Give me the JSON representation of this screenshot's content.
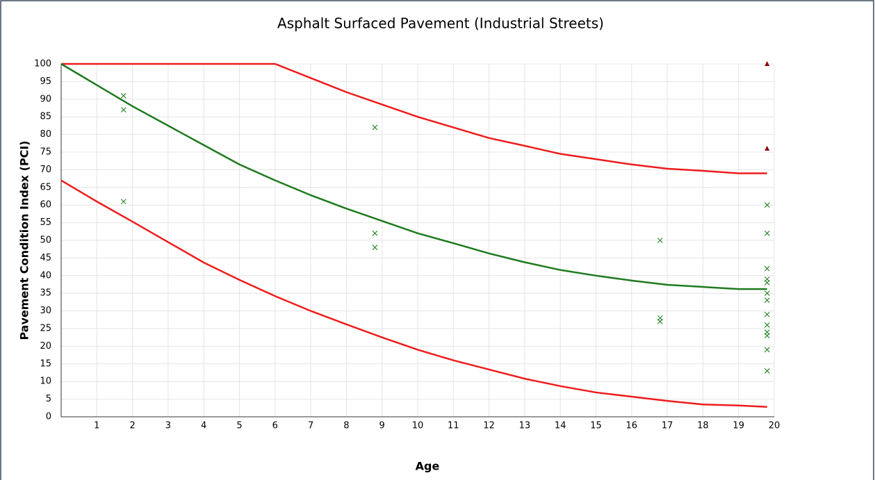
{
  "chart_data": {
    "type": "line",
    "title": "Asphalt Surfaced Pavement (Industrial Streets)",
    "xlabel": "Age",
    "ylabel": "Pavement Condition Index (PCI)",
    "xlim": [
      0,
      20
    ],
    "ylim": [
      0,
      100
    ],
    "xticks": [
      1,
      2,
      3,
      4,
      5,
      6,
      7,
      8,
      9,
      10,
      11,
      12,
      13,
      14,
      15,
      16,
      17,
      18,
      19,
      20
    ],
    "yticks": [
      0,
      5,
      10,
      15,
      20,
      25,
      30,
      35,
      40,
      45,
      50,
      55,
      60,
      65,
      70,
      75,
      80,
      85,
      90,
      95,
      100
    ],
    "grid": true,
    "series": [
      {
        "type": "line",
        "color": "#ee1c1c",
        "x": [
          0,
          6,
          7,
          8,
          9,
          10,
          11,
          12,
          13,
          14,
          15,
          16,
          17,
          18,
          19,
          19.8
        ],
        "values": [
          100,
          100,
          96,
          92,
          88.5,
          85,
          82,
          79,
          76.8,
          74.5,
          73,
          71.5,
          70.3,
          69.7,
          69,
          69
        ]
      },
      {
        "type": "line",
        "color": "#1e7a1e",
        "x": [
          0,
          1,
          2,
          3,
          4,
          5,
          6,
          7,
          8,
          9,
          10,
          11,
          12,
          13,
          14,
          15,
          16,
          17,
          18,
          19,
          19.8
        ],
        "values": [
          100,
          94,
          88,
          82.5,
          77,
          71.5,
          67,
          62.8,
          59,
          55.5,
          52,
          49.2,
          46.3,
          43.8,
          41.6,
          40,
          38.6,
          37.4,
          36.8,
          36.2,
          36.2
        ]
      },
      {
        "type": "line",
        "color": "#ee1c1c",
        "x": [
          0,
          1,
          2,
          3,
          4,
          5,
          6,
          7,
          8,
          9,
          10,
          11,
          12,
          13,
          14,
          15,
          16,
          17,
          18,
          19,
          19.8
        ],
        "values": [
          67,
          61,
          55.3,
          49.5,
          43.7,
          38.8,
          34.2,
          30,
          26.2,
          22.5,
          19,
          16,
          13.4,
          10.8,
          8.7,
          6.9,
          5.7,
          4.5,
          3.5,
          3.2,
          2.8
        ]
      },
      {
        "type": "scatter",
        "marker": "x",
        "color": "#2e8b2e",
        "x": [
          1.75,
          1.75,
          1.75,
          8.8,
          8.8,
          8.8,
          16.8,
          16.8,
          16.8,
          19.8,
          19.8,
          19.8,
          19.8,
          19.8,
          19.8,
          19.8,
          19.8,
          19.8,
          19.8,
          19.8,
          19.8,
          19.8
        ],
        "values": [
          91,
          87,
          61,
          82,
          52,
          48,
          50,
          28,
          27,
          60,
          52,
          42,
          39,
          38,
          35,
          33,
          29,
          26,
          24,
          23,
          19,
          13
        ]
      },
      {
        "type": "scatter",
        "marker": "triangle",
        "color": "#8b0000",
        "x": [
          19.8,
          19.8
        ],
        "values": [
          100,
          76
        ]
      }
    ]
  }
}
